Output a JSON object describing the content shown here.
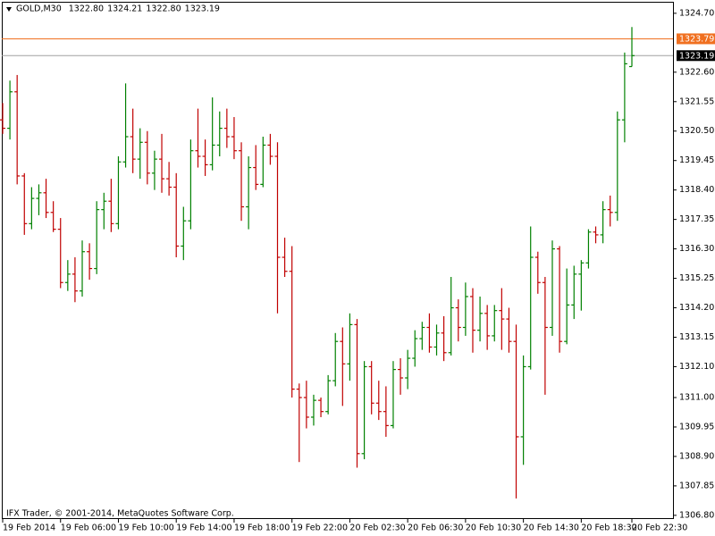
{
  "chart_data": {
    "type": "ohlc",
    "title": "GOLD,M30",
    "header_values": [
      {
        "value": 1322.8,
        "label": "1322.80"
      },
      {
        "value": 1324.21,
        "label": "1324.21"
      },
      {
        "value": 1322.8,
        "label": "1322.80"
      },
      {
        "value": 1323.19,
        "label": "1323.19"
      }
    ],
    "footer": "IFX Trader, © 2001-2014, MetaQuotes Software Corp.",
    "bull_color": "#008000",
    "bear_color": "#c00000",
    "categories": [
      "19 Feb 2014",
      null,
      null,
      null,
      null,
      null,
      null,
      null,
      "19 Feb 06:00",
      null,
      null,
      null,
      null,
      null,
      null,
      null,
      "19 Feb 10:00",
      null,
      null,
      null,
      null,
      null,
      null,
      null,
      "19 Feb 14:00",
      null,
      null,
      null,
      null,
      null,
      null,
      null,
      "19 Feb 18:00",
      null,
      null,
      null,
      null,
      null,
      null,
      null,
      "19 Feb 22:00",
      null,
      null,
      null,
      null,
      null,
      null,
      null,
      "20 Feb 02:30",
      null,
      null,
      null,
      null,
      null,
      null,
      null,
      "20 Feb 06:30",
      null,
      null,
      null,
      null,
      null,
      null,
      null,
      "20 Feb 10:30",
      null,
      null,
      null,
      null,
      null,
      null,
      null,
      "20 Feb 14:30",
      null,
      null,
      null,
      null,
      null,
      null,
      null,
      "20 Feb 18:30",
      null,
      null,
      null,
      null,
      null,
      null,
      "20 Feb 22:30"
    ],
    "open": [
      1320.9,
      1320.6,
      1321.9,
      1318.9,
      1317.2,
      1318.1,
      1318.3,
      1317.6,
      1317.0,
      1315.1,
      1315.4,
      1314.8,
      1316.2,
      1315.6,
      1317.7,
      1318.0,
      1317.2,
      1319.4,
      1320.3,
      1319.5,
      1320.1,
      1319.0,
      1319.5,
      1318.8,
      1318.5,
      1316.4,
      1317.3,
      1319.8,
      1319.6,
      1319.3,
      1320.0,
      1320.6,
      1320.3,
      1319.8,
      1317.8,
      1319.2,
      1318.6,
      1320.0,
      1319.6,
      1316.0,
      1315.5,
      1311.3,
      1311.0,
      1310.3,
      1310.9,
      1310.5,
      1311.6,
      1313.0,
      1312.2,
      1313.6,
      1309.0,
      1312.1,
      1310.8,
      1310.5,
      1310.0,
      1312.0,
      1311.7,
      1312.4,
      1313.1,
      1313.5,
      1312.8,
      1313.3,
      1312.6,
      1314.2,
      1313.5,
      1314.6,
      1313.4,
      1314.0,
      1313.2,
      1314.1,
      1313.8,
      1313.0,
      1309.6,
      1312.1,
      1316.0,
      1315.1,
      1313.5,
      1316.3,
      1313.0,
      1314.3,
      1315.4,
      1315.8,
      1316.9,
      1316.8,
      1317.7,
      1317.6,
      1320.9,
      1322.8
    ],
    "high": [
      1321.5,
      1322.3,
      1322.5,
      1319.0,
      1318.5,
      1318.6,
      1318.8,
      1318.0,
      1317.4,
      1315.9,
      1316.0,
      1316.6,
      1316.5,
      1318.0,
      1318.3,
      1318.8,
      1319.6,
      1322.2,
      1321.3,
      1320.6,
      1320.5,
      1319.8,
      1320.4,
      1319.4,
      1319.0,
      1317.8,
      1320.2,
      1321.3,
      1320.2,
      1321.7,
      1321.2,
      1321.3,
      1321.0,
      1320.1,
      1319.6,
      1320.0,
      1320.3,
      1320.4,
      1320.1,
      1316.7,
      1316.4,
      1311.5,
      1311.6,
      1311.1,
      1311.0,
      1311.8,
      1313.3,
      1313.5,
      1314.0,
      1313.8,
      1312.3,
      1312.3,
      1311.6,
      1311.4,
      1312.3,
      1312.4,
      1312.7,
      1313.4,
      1313.7,
      1314.0,
      1313.6,
      1313.9,
      1315.3,
      1314.5,
      1315.1,
      1314.9,
      1314.6,
      1314.3,
      1314.3,
      1314.9,
      1314.2,
      1313.6,
      1312.5,
      1317.1,
      1316.2,
      1315.3,
      1316.6,
      1316.4,
      1315.6,
      1315.7,
      1315.9,
      1317.0,
      1317.1,
      1318.0,
      1318.2,
      1321.2,
      1323.3,
      1324.21
    ],
    "low": [
      1320.4,
      1320.2,
      1318.6,
      1316.8,
      1317.0,
      1317.5,
      1317.4,
      1316.9,
      1314.9,
      1314.8,
      1314.4,
      1314.6,
      1315.2,
      1315.4,
      1317.0,
      1316.9,
      1317.0,
      1319.2,
      1319.0,
      1318.8,
      1318.6,
      1318.4,
      1318.3,
      1318.2,
      1316.0,
      1315.9,
      1317.0,
      1319.2,
      1318.9,
      1319.1,
      1319.6,
      1319.9,
      1319.5,
      1317.3,
      1317.0,
      1318.4,
      1318.5,
      1319.3,
      1314.0,
      1315.3,
      1311.0,
      1308.7,
      1309.9,
      1310.0,
      1310.3,
      1310.4,
      1311.4,
      1310.7,
      1311.6,
      1308.5,
      1308.8,
      1310.4,
      1310.2,
      1309.6,
      1309.9,
      1311.1,
      1311.3,
      1312.1,
      1312.7,
      1312.6,
      1312.5,
      1312.3,
      1312.5,
      1313.0,
      1313.2,
      1312.6,
      1313.0,
      1312.7,
      1313.0,
      1312.7,
      1312.6,
      1307.4,
      1308.6,
      1312.0,
      1314.7,
      1311.1,
      1313.2,
      1312.6,
      1312.9,
      1313.8,
      1314.1,
      1315.6,
      1316.5,
      1316.5,
      1317.1,
      1317.3,
      1320.1,
      1322.8
    ],
    "close": [
      1320.6,
      1321.9,
      1318.9,
      1317.2,
      1318.1,
      1318.3,
      1317.6,
      1317.0,
      1315.1,
      1315.4,
      1314.8,
      1316.2,
      1315.6,
      1317.7,
      1318.0,
      1317.2,
      1319.4,
      1320.3,
      1319.5,
      1320.1,
      1319.0,
      1319.5,
      1318.8,
      1318.5,
      1316.4,
      1317.3,
      1319.8,
      1319.6,
      1319.3,
      1320.0,
      1320.6,
      1320.3,
      1319.8,
      1317.8,
      1319.2,
      1318.6,
      1320.0,
      1319.6,
      1316.0,
      1315.5,
      1311.3,
      1311.0,
      1310.3,
      1310.9,
      1310.5,
      1311.6,
      1313.0,
      1312.2,
      1313.6,
      1309.0,
      1312.1,
      1310.8,
      1310.5,
      1310.0,
      1312.0,
      1311.7,
      1312.4,
      1313.1,
      1313.5,
      1312.8,
      1313.3,
      1312.6,
      1314.2,
      1313.5,
      1314.6,
      1313.4,
      1314.0,
      1313.2,
      1314.1,
      1313.8,
      1313.0,
      1309.6,
      1312.1,
      1316.0,
      1315.1,
      1313.5,
      1316.3,
      1313.0,
      1314.3,
      1315.4,
      1315.8,
      1316.9,
      1316.8,
      1317.7,
      1317.6,
      1320.9,
      1322.9,
      1323.19
    ],
    "ylim": [
      1306.7,
      1325.11
    ],
    "yticks": [
      {
        "value": 1324.7,
        "label": "1324.70"
      },
      {
        "value": 1322.6,
        "label": "1322.60"
      },
      {
        "value": 1321.55,
        "label": "1321.55"
      },
      {
        "value": 1320.5,
        "label": "1320.50"
      },
      {
        "value": 1319.45,
        "label": "1319.45"
      },
      {
        "value": 1318.4,
        "label": "1318.40"
      },
      {
        "value": 1317.35,
        "label": "1317.35"
      },
      {
        "value": 1316.3,
        "label": "1316.30"
      },
      {
        "value": 1315.25,
        "label": "1315.25"
      },
      {
        "value": 1314.2,
        "label": "1314.20"
      },
      {
        "value": 1313.15,
        "label": "1313.15"
      },
      {
        "value": 1312.1,
        "label": "1312.10"
      },
      {
        "value": 1311.0,
        "label": "1311.00"
      },
      {
        "value": 1309.95,
        "label": "1309.95"
      },
      {
        "value": 1308.9,
        "label": "1308.90"
      },
      {
        "value": 1307.85,
        "label": "1307.85"
      },
      {
        "value": 1306.8,
        "label": "1306.80"
      }
    ],
    "price_lines": [
      {
        "value": 1323.79,
        "label": "1323.79",
        "color": "#f07020",
        "box_color": "#f07020"
      },
      {
        "value": 1323.19,
        "label": "1323.19",
        "color": "#a0a0a0",
        "box_color": "#000000"
      }
    ]
  }
}
